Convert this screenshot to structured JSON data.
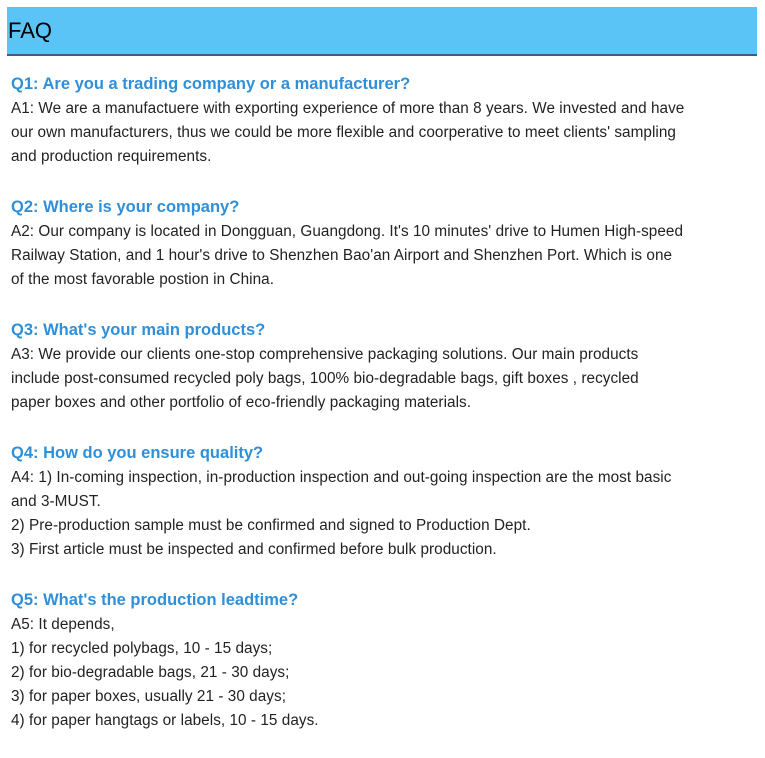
{
  "header": {
    "title": "FAQ"
  },
  "faq": [
    {
      "question": "Q1: Are you a trading company or a manufacturer?",
      "answer_lines": [
        "A1: We are a manufactuere with exporting experience of more than 8 years. We invested and have",
        "our own manufacturers, thus we could be more flexible and coorperative to meet clients' sampling",
        "and production requirements."
      ]
    },
    {
      "question": "Q2: Where is your company?",
      "answer_lines": [
        "A2: Our company is located in Dongguan, Guangdong. It's 10 minutes' drive to Humen High-speed",
        "Railway Station, and 1 hour's drive to Shenzhen Bao'an Airport and Shenzhen Port. Which is one",
        "of the most favorable postion in China."
      ]
    },
    {
      "question": "Q3: What's your main products?",
      "answer_lines": [
        "A3: We provide our clients one-stop comprehensive packaging solutions. Our main products",
        "include post-consumed recycled poly bags, 100% bio-degradable bags, gift boxes , recycled",
        "paper boxes and other portfolio of eco-friendly packaging materials."
      ]
    },
    {
      "question": "Q4: How do you ensure quality?",
      "answer_lines": [
        "A4: 1) In-coming inspection, in-production inspection and out-going inspection are the most basic",
        "and 3-MUST.",
        "2) Pre-production sample must be confirmed and signed to Production Dept.",
        "3) First article must be inspected and confirmed before bulk production."
      ]
    },
    {
      "question": "Q5: What's the production leadtime?",
      "answer_lines": [
        "A5: It depends,",
        "1) for recycled polybags, 10 - 15 days;",
        "2) for bio-degradable bags, 21 - 30 days;",
        "3) for paper boxes, usually 21 - 30 days;",
        "4) for paper hangtags or labels, 10 - 15 days."
      ]
    }
  ]
}
